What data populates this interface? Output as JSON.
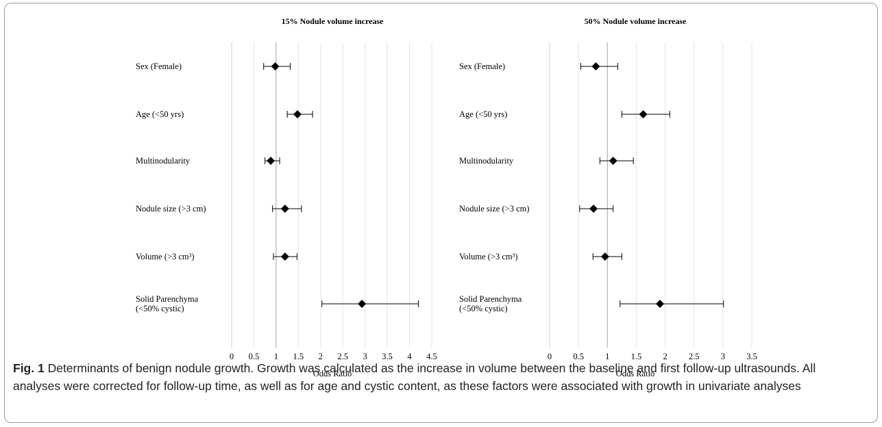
{
  "caption": {
    "label": "Fig. 1",
    "text": "Determinants of benign nodule growth. Growth was calculated as the increase in volume between the baseline and first follow-up ultrasounds. All analyses were corrected for follow-up time, as well as for age and cystic content, as these factors were associated with growth in univariate analyses"
  },
  "chart_data": [
    {
      "type": "forest",
      "title": "15% Nodule volume increase",
      "xlabel": "Odds Ratio",
      "xlim": [
        0,
        4.5
      ],
      "ticks": [
        "0",
        "0.5",
        "1",
        "1.5",
        "2",
        "2.5",
        "3",
        "3.5",
        "4",
        "4.5"
      ],
      "reference_line": 1,
      "grid": "vertical",
      "rows": [
        {
          "label": [
            "Sex (Female)"
          ],
          "or": 0.98,
          "ci_low": 0.72,
          "ci_high": 1.32
        },
        {
          "label": [
            "Age (<50 yrs)"
          ],
          "or": 1.48,
          "ci_low": 1.25,
          "ci_high": 1.82
        },
        {
          "label": [
            "Multinodularity"
          ],
          "or": 0.88,
          "ci_low": 0.75,
          "ci_high": 1.08
        },
        {
          "label": [
            "Nodule size (>3 cm)"
          ],
          "or": 1.2,
          "ci_low": 0.92,
          "ci_high": 1.57
        },
        {
          "label": [
            "Volume (>3 cm³)"
          ],
          "or": 1.2,
          "ci_low": 0.94,
          "ci_high": 1.47
        },
        {
          "label": [
            "Solid Parenchyma",
            "(<50% cystic)"
          ],
          "or": 2.93,
          "ci_low": 2.03,
          "ci_high": 4.2
        }
      ]
    },
    {
      "type": "forest",
      "title": "50% Nodule volume increase",
      "xlabel": "Odds Ratio",
      "xlim": [
        0,
        3.5
      ],
      "ticks": [
        "0",
        "0.5",
        "1",
        "1.5",
        "2",
        "2.5",
        "3",
        "3.5"
      ],
      "reference_line": 1,
      "grid": "vertical",
      "rows": [
        {
          "label": [
            "Sex (Female)"
          ],
          "or": 0.8,
          "ci_low": 0.54,
          "ci_high": 1.18
        },
        {
          "label": [
            "Age (<50 yrs)"
          ],
          "or": 1.62,
          "ci_low": 1.25,
          "ci_high": 2.08
        },
        {
          "label": [
            "Multinodularity"
          ],
          "or": 1.1,
          "ci_low": 0.87,
          "ci_high": 1.45
        },
        {
          "label": [
            "Nodule size (>3 cm)"
          ],
          "or": 0.76,
          "ci_low": 0.52,
          "ci_high": 1.1
        },
        {
          "label": [
            "Volume (>3 cm³)"
          ],
          "or": 0.96,
          "ci_low": 0.75,
          "ci_high": 1.25
        },
        {
          "label": [
            "Solid Parenchyma",
            "(<50% cystic)"
          ],
          "or": 1.91,
          "ci_low": 1.22,
          "ci_high": 3.01
        }
      ]
    }
  ]
}
